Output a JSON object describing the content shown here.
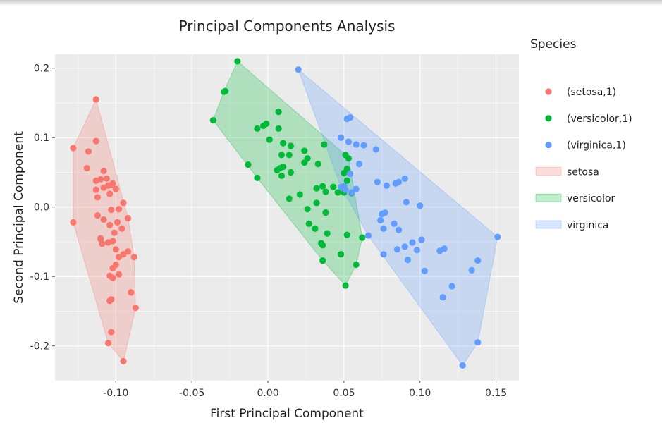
{
  "chart_data": {
    "type": "scatter",
    "title": "Principal Components Analysis",
    "xlabel": "First Principal Component",
    "ylabel": "Second Principal Component",
    "xlim": [
      -0.14,
      0.165
    ],
    "ylim": [
      -0.25,
      0.22
    ],
    "xticks": [
      -0.1,
      -0.05,
      0.0,
      0.05,
      0.1,
      0.15
    ],
    "xtick_labels": [
      "-0.10",
      "-0.05",
      "0.00",
      "0.05",
      "0.10",
      "0.15"
    ],
    "yticks": [
      -0.2,
      -0.1,
      0.0,
      0.1,
      0.2
    ],
    "ytick_labels": [
      "-0.2",
      "-0.1",
      "0.0",
      "0.1",
      "0.2"
    ],
    "legend": {
      "title": "Species",
      "placement": "right",
      "entries": [
        {
          "label": "(setosa,1)",
          "kind": "marker",
          "color": "#F8766D"
        },
        {
          "label": "(versicolor,1)",
          "kind": "marker",
          "color": "#00BA38"
        },
        {
          "label": "(virginica,1)",
          "kind": "marker",
          "color": "#619CFF"
        },
        {
          "label": "setosa",
          "kind": "fill",
          "color": "#F8766D"
        },
        {
          "label": "versicolor",
          "kind": "fill",
          "color": "#00BA38"
        },
        {
          "label": "virginica",
          "kind": "fill",
          "color": "#619CFF"
        }
      ]
    },
    "series": [
      {
        "name": "setosa",
        "color": "#F8766D",
        "points": [
          [
            -0.113,
            0.155
          ],
          [
            -0.128,
            0.085
          ],
          [
            -0.113,
            0.095
          ],
          [
            -0.118,
            0.08
          ],
          [
            -0.119,
            0.056
          ],
          [
            -0.113,
            0.038
          ],
          [
            -0.108,
            0.052
          ],
          [
            -0.11,
            0.04
          ],
          [
            -0.106,
            0.041
          ],
          [
            -0.113,
            0.025
          ],
          [
            -0.108,
            0.028
          ],
          [
            -0.105,
            0.031
          ],
          [
            -0.102,
            0.034
          ],
          [
            -0.1,
            0.026
          ],
          [
            -0.103,
            0.032
          ],
          [
            -0.095,
            0.006
          ],
          [
            -0.104,
            0.019
          ],
          [
            -0.112,
            0.014
          ],
          [
            -0.128,
            -0.022
          ],
          [
            -0.112,
            -0.012
          ],
          [
            -0.098,
            -0.003
          ],
          [
            -0.103,
            -0.004
          ],
          [
            -0.108,
            -0.018
          ],
          [
            -0.092,
            -0.016
          ],
          [
            -0.104,
            -0.026
          ],
          [
            -0.099,
            -0.022
          ],
          [
            -0.096,
            -0.031
          ],
          [
            -0.11,
            -0.045
          ],
          [
            -0.101,
            -0.037
          ],
          [
            -0.109,
            -0.053
          ],
          [
            -0.105,
            -0.051
          ],
          [
            -0.102,
            -0.049
          ],
          [
            -0.1,
            -0.061
          ],
          [
            -0.095,
            -0.068
          ],
          [
            -0.092,
            -0.064
          ],
          [
            -0.088,
            -0.072
          ],
          [
            -0.098,
            -0.072
          ],
          [
            -0.1,
            -0.083
          ],
          [
            -0.102,
            -0.088
          ],
          [
            -0.104,
            -0.099
          ],
          [
            -0.102,
            -0.102
          ],
          [
            -0.098,
            -0.097
          ],
          [
            -0.11,
            -0.046
          ],
          [
            -0.09,
            -0.123
          ],
          [
            -0.103,
            -0.133
          ],
          [
            -0.104,
            -0.135
          ],
          [
            -0.087,
            -0.145
          ],
          [
            -0.103,
            -0.18
          ],
          [
            -0.105,
            -0.196
          ],
          [
            -0.095,
            -0.222
          ]
        ]
      },
      {
        "name": "versicolor",
        "color": "#00BA38",
        "points": [
          [
            -0.02,
            0.21
          ],
          [
            -0.028,
            0.167
          ],
          [
            -0.029,
            0.166
          ],
          [
            -0.036,
            0.125
          ],
          [
            0.007,
            0.137
          ],
          [
            -0.007,
            0.113
          ],
          [
            -0.003,
            0.117
          ],
          [
            -0.001,
            0.12
          ],
          [
            0.007,
            0.113
          ],
          [
            0.001,
            0.097
          ],
          [
            0.01,
            0.092
          ],
          [
            0.015,
            0.088
          ],
          [
            0.024,
            0.081
          ],
          [
            0.037,
            0.09
          ],
          [
            0.009,
            0.075
          ],
          [
            0.014,
            0.075
          ],
          [
            0.026,
            0.07
          ],
          [
            0.033,
            0.062
          ],
          [
            0.024,
            0.064
          ],
          [
            0.006,
            0.053
          ],
          [
            0.008,
            0.056
          ],
          [
            0.01,
            0.058
          ],
          [
            0.015,
            0.05
          ],
          [
            0.009,
            0.045
          ],
          [
            -0.013,
            0.061
          ],
          [
            -0.007,
            0.042
          ],
          [
            0.051,
            0.075
          ],
          [
            0.052,
            0.055
          ],
          [
            0.053,
            0.07
          ],
          [
            0.05,
            0.049
          ],
          [
            0.036,
            0.03
          ],
          [
            0.032,
            0.027
          ],
          [
            0.038,
            0.022
          ],
          [
            0.021,
            0.018
          ],
          [
            0.014,
            0.012
          ],
          [
            0.032,
            0.006
          ],
          [
            0.026,
            -0.003
          ],
          [
            0.038,
            -0.008
          ],
          [
            0.043,
            0.029
          ],
          [
            0.046,
            0.021
          ],
          [
            0.052,
            0.038
          ],
          [
            0.055,
            0.02
          ],
          [
            0.05,
            0.021
          ],
          [
            0.027,
            -0.024
          ],
          [
            0.031,
            -0.031
          ],
          [
            0.039,
            -0.038
          ],
          [
            0.035,
            -0.052
          ],
          [
            0.036,
            -0.055
          ],
          [
            0.052,
            -0.04
          ],
          [
            0.062,
            -0.044
          ],
          [
            0.048,
            -0.068
          ],
          [
            0.036,
            -0.077
          ],
          [
            0.058,
            -0.083
          ],
          [
            0.051,
            -0.113
          ]
        ]
      },
      {
        "name": "virginica",
        "color": "#619CFF",
        "points": [
          [
            0.02,
            0.198
          ],
          [
            0.052,
            0.127
          ],
          [
            0.054,
            0.129
          ],
          [
            0.048,
            0.1
          ],
          [
            0.053,
            0.094
          ],
          [
            0.058,
            0.09
          ],
          [
            0.063,
            0.089
          ],
          [
            0.071,
            0.083
          ],
          [
            0.06,
            0.062
          ],
          [
            0.054,
            0.048
          ],
          [
            0.05,
            0.03
          ],
          [
            0.051,
            0.025
          ],
          [
            0.048,
            0.029
          ],
          [
            0.055,
            0.021
          ],
          [
            0.058,
            0.026
          ],
          [
            0.072,
            0.036
          ],
          [
            0.078,
            0.031
          ],
          [
            0.084,
            0.034
          ],
          [
            0.086,
            0.036
          ],
          [
            0.09,
            0.041
          ],
          [
            0.091,
            0.007
          ],
          [
            0.1,
            0.002
          ],
          [
            0.077,
            -0.008
          ],
          [
            0.075,
            -0.01
          ],
          [
            0.074,
            -0.019
          ],
          [
            0.076,
            -0.031
          ],
          [
            0.083,
            -0.024
          ],
          [
            0.086,
            -0.033
          ],
          [
            0.066,
            -0.041
          ],
          [
            0.09,
            -0.057
          ],
          [
            0.095,
            -0.051
          ],
          [
            0.101,
            -0.047
          ],
          [
            0.098,
            -0.062
          ],
          [
            0.085,
            -0.061
          ],
          [
            0.076,
            -0.068
          ],
          [
            0.092,
            -0.076
          ],
          [
            0.103,
            -0.092
          ],
          [
            0.113,
            -0.063
          ],
          [
            0.116,
            -0.06
          ],
          [
            0.134,
            -0.091
          ],
          [
            0.138,
            -0.077
          ],
          [
            0.151,
            -0.043
          ],
          [
            0.121,
            -0.114
          ],
          [
            0.115,
            -0.13
          ],
          [
            0.138,
            -0.195
          ],
          [
            0.128,
            -0.228
          ]
        ]
      }
    ]
  }
}
